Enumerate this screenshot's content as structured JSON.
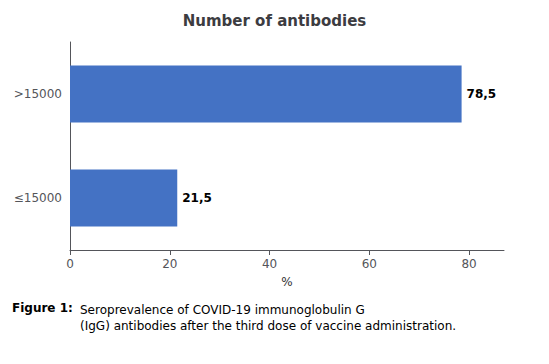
{
  "chart_data": {
    "type": "bar",
    "orientation": "horizontal",
    "title": "Number of antibodies",
    "categories": [
      "≤15000",
      ">15000"
    ],
    "values": [
      21.5,
      78.5
    ],
    "value_labels": [
      "21,5",
      "78,5"
    ],
    "data_labels": true,
    "color": "#4472C4",
    "xlabel": "%",
    "xlim": [
      0,
      87
    ],
    "xticks": [
      0,
      20,
      40,
      60,
      80
    ],
    "grid": false,
    "annotations": [
      "Figure 1:",
      "Seroprevalence of COVID-19 immunoglobulin G\n(IgG) antibodies after the third dose of vaccine administration."
    ]
  }
}
